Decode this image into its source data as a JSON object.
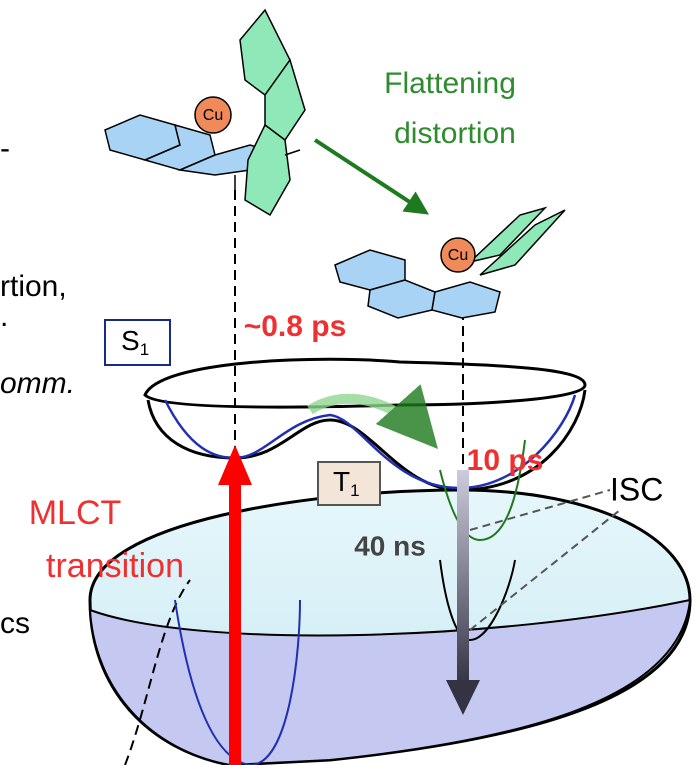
{
  "title_lines": [
    "Flattening",
    "distortion"
  ],
  "cu_labels": [
    "Cu",
    "Cu"
  ],
  "s1": {
    "main": "S",
    "sub": "1"
  },
  "t1": {
    "main": "T",
    "sub": "1"
  },
  "times": {
    "s1_relax": "~0.8 ps",
    "s1_flatten": "10 ps",
    "t1_life": "40 ns"
  },
  "isc": "ISC",
  "excitation": [
    "MLCT",
    "transition"
  ],
  "cropped_left": [
    "-",
    "rtion,",
    ".",
    "omm.",
    "cs"
  ]
}
